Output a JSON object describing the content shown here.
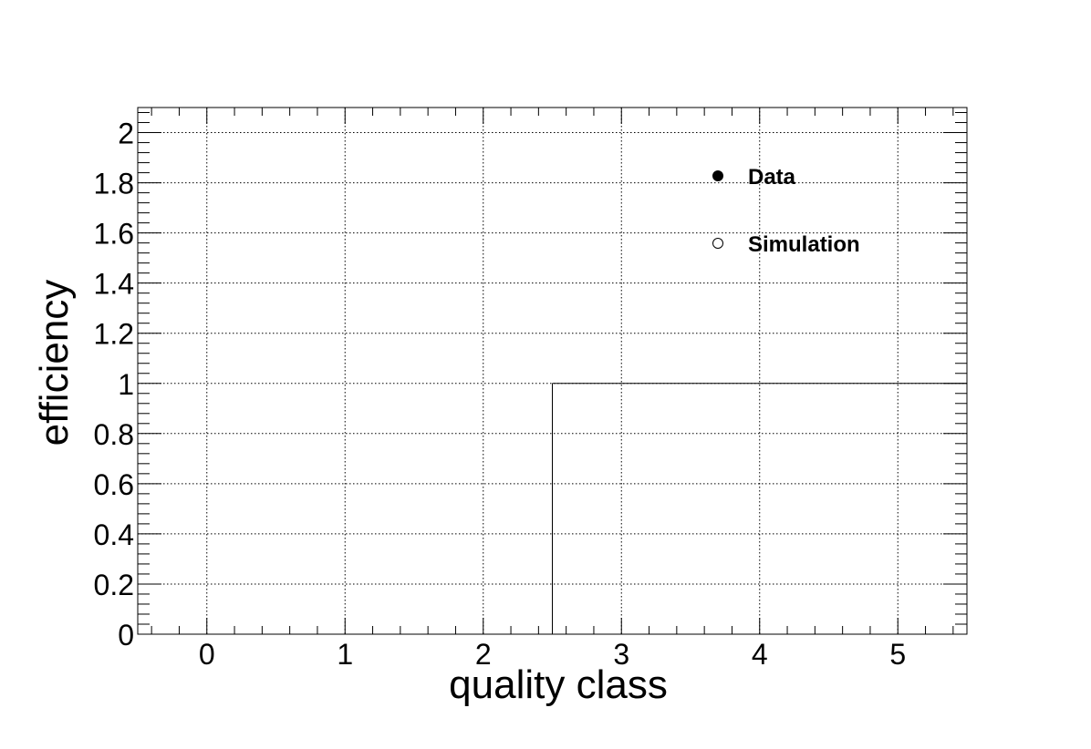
{
  "chart_data": {
    "type": "line",
    "title": "",
    "xlabel": "quality class",
    "ylabel": "efficiency",
    "xlim": [
      -0.5,
      5.5
    ],
    "ylim": [
      0,
      2.1
    ],
    "xticks": [
      "0",
      "1",
      "2",
      "3",
      "4",
      "5"
    ],
    "yticks": [
      "0",
      "0.2",
      "0.4",
      "0.6",
      "0.8",
      "1",
      "1.2",
      "1.4",
      "1.6",
      "1.8",
      "2"
    ],
    "grid": true,
    "legend_position": "top-right",
    "legend": [
      {
        "label": "Data",
        "marker": "filled-circle"
      },
      {
        "label": "Simulation",
        "marker": "open-circle"
      }
    ],
    "series": [
      {
        "name": "Data",
        "style": "step",
        "color": "#000000",
        "bins": [
          {
            "low": -0.5,
            "high": 2.5,
            "value": 0
          },
          {
            "low": 2.5,
            "high": 5.5,
            "value": 1
          }
        ]
      },
      {
        "name": "Simulation",
        "style": "step",
        "color": "#1f3a8a",
        "bins": [
          {
            "low": -0.5,
            "high": 2.5,
            "value": 0
          }
        ]
      }
    ]
  }
}
